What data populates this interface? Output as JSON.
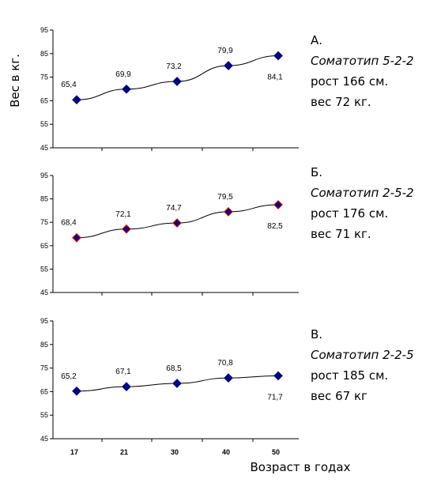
{
  "chart_data": {
    "type": "line",
    "xlabel": "Возраст в годах",
    "ylabel": "Вес в кг.",
    "categories": [
      "17",
      "21",
      "30",
      "40",
      "50"
    ],
    "yticks": [
      "95",
      "85",
      "75",
      "65",
      "55",
      "45"
    ],
    "ylim": [
      45,
      95
    ],
    "panels": [
      {
        "values": [
          65.4,
          69.9,
          73.2,
          79.9,
          84.1
        ],
        "labels": [
          "65,4",
          "69,9",
          "73,2",
          "79,9",
          "84,1"
        ],
        "marker_color": "#000080",
        "marker_stroke": "#000080",
        "annotation": [
          "А.",
          "Соматотип 5-2-2",
          "рост 166 см.",
          "вес 72 кг."
        ]
      },
      {
        "values": [
          68.4,
          72.1,
          74.7,
          79.5,
          82.5
        ],
        "labels": [
          "68,4",
          "72,1",
          "74,7",
          "79,5",
          "82,5"
        ],
        "marker_color": "#000080",
        "marker_stroke": "#cc0000",
        "annotation": [
          "Б.",
          "Соматотип 2-5-2",
          "рост 176 см.",
          "вес 71 кг."
        ]
      },
      {
        "values": [
          65.2,
          67.1,
          68.5,
          70.8,
          71.7
        ],
        "labels": [
          "65,2",
          "67,1",
          "68,5",
          "70,8",
          "71,7"
        ],
        "marker_color": "#000080",
        "marker_stroke": "#000080",
        "annotation": [
          "В.",
          "Соматотип 2-2-5",
          "рост 185 см.",
          "вес 67 кг"
        ]
      }
    ]
  }
}
